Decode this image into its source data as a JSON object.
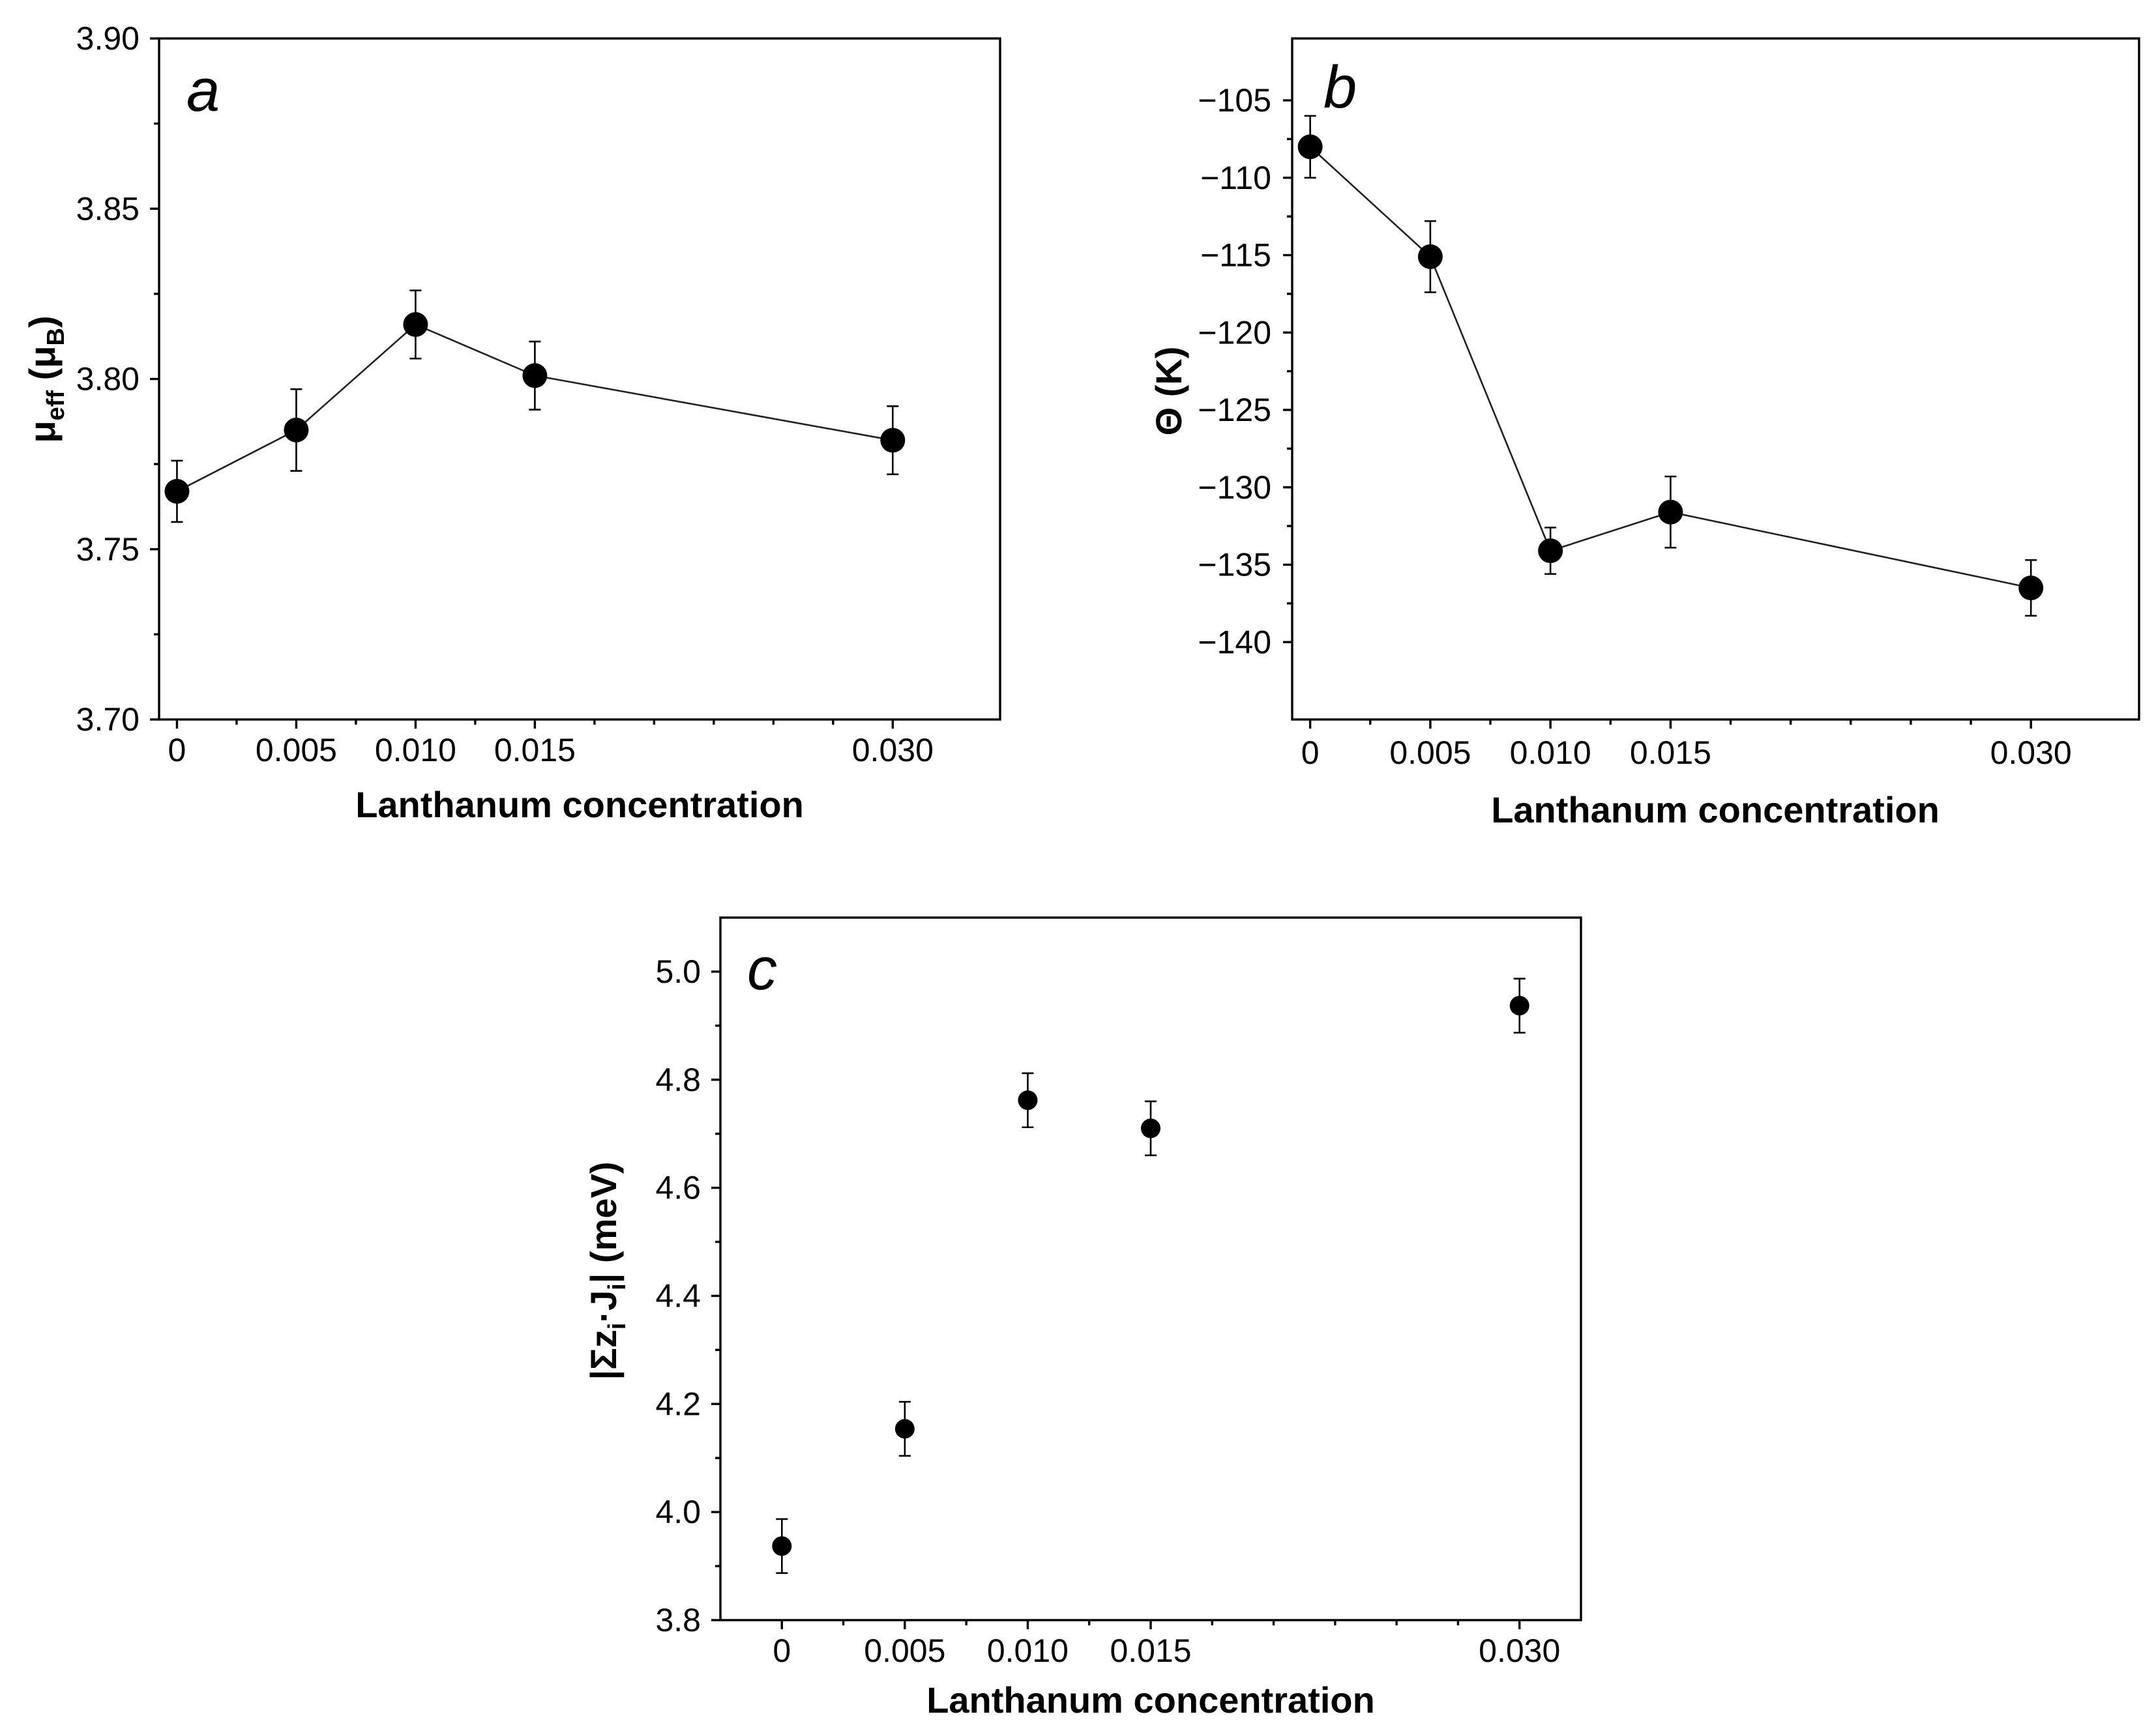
{
  "chart_data": [
    {
      "id": "a",
      "type": "scatter",
      "panel_label": "a",
      "xlabel": "Lanthanum concentration",
      "ylabel": {
        "main": "μ",
        "sub": "eff",
        "unit_open": " (μ",
        "unit_sub": "B",
        "unit_close": ")"
      },
      "xlim": [
        -0.00075,
        0.0345
      ],
      "ylim": [
        3.7,
        3.9
      ],
      "xticks": [
        0,
        0.005,
        0.01,
        0.015,
        0.03
      ],
      "xtick_labels": [
        "0",
        "0.005",
        "0.010",
        "0.015",
        "0.030"
      ],
      "yticks": [
        3.7,
        3.75,
        3.8,
        3.85,
        3.9
      ],
      "ytick_labels": [
        "3.70",
        "3.75",
        "3.80",
        "3.85",
        "3.90"
      ],
      "connected": true,
      "x": [
        0,
        0.005,
        0.01,
        0.015,
        0.03
      ],
      "y": [
        3.767,
        3.785,
        3.816,
        3.801,
        3.782
      ],
      "yerr": [
        0.009,
        0.012,
        0.01,
        0.01,
        0.01
      ]
    },
    {
      "id": "b",
      "type": "scatter",
      "panel_label": "b",
      "xlabel": "Lanthanum concentration",
      "ylabel": {
        "main": "Θ (K)"
      },
      "xlim": [
        -0.00075,
        0.0345
      ],
      "ylim": [
        -145,
        -101
      ],
      "xticks": [
        0,
        0.005,
        0.01,
        0.015,
        0.03
      ],
      "xtick_labels": [
        "0",
        "0.005",
        "0.010",
        "0.015",
        "0.030"
      ],
      "yticks": [
        -140,
        -135,
        -130,
        -125,
        -120,
        -115,
        -110,
        -105
      ],
      "ytick_labels": [
        "−140",
        "−135",
        "−130",
        "−125",
        "−120",
        "−115",
        "−110",
        "−105"
      ],
      "connected": true,
      "x": [
        0,
        0.005,
        0.01,
        0.015,
        0.03
      ],
      "y": [
        -108.0,
        -115.1,
        -134.1,
        -131.6,
        -136.5
      ],
      "yerr": [
        2.0,
        2.3,
        1.5,
        2.3,
        1.8
      ]
    },
    {
      "id": "c",
      "type": "scatter",
      "panel_label": "c",
      "xlabel": "Lanthanum concentration",
      "ylabel": {
        "main": "|Σz",
        "sub1": "i",
        "mid": "·J",
        "sub2": "i",
        "end": "| (meV)"
      },
      "xlim": [
        -0.0025,
        0.0325
      ],
      "ylim": [
        3.8,
        5.1
      ],
      "xticks": [
        0,
        0.005,
        0.01,
        0.015,
        0.03
      ],
      "xtick_labels": [
        "0",
        "0.005",
        "0.010",
        "0.015",
        "0.030"
      ],
      "yticks": [
        3.8,
        4.0,
        4.2,
        4.4,
        4.6,
        4.8,
        5.0
      ],
      "ytick_labels": [
        "3.8",
        "4.0",
        "4.2",
        "4.4",
        "4.6",
        "4.8",
        "5.0"
      ],
      "connected": false,
      "x": [
        0,
        0.005,
        0.01,
        0.015,
        0.03
      ],
      "y": [
        3.937,
        4.154,
        4.762,
        4.71,
        4.937
      ],
      "yerr": [
        0.05,
        0.05,
        0.05,
        0.05,
        0.05
      ]
    }
  ]
}
